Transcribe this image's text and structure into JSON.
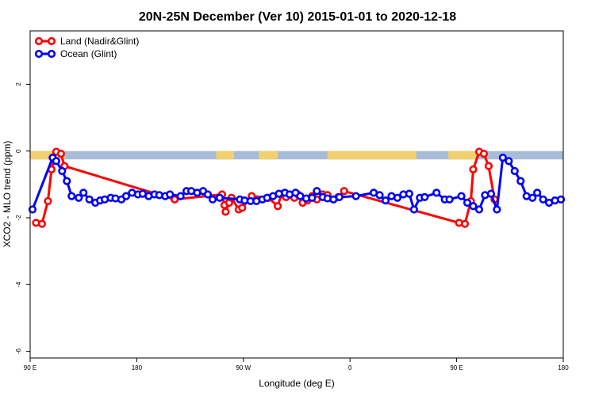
{
  "chart_data": {
    "type": "line",
    "title": "20N-25N December (Ver 10)   2015-01-01 to 2020-12-18",
    "xlabel": "Longitude (deg E)",
    "ylabel": "XCO2 - MLO trend (ppm)",
    "xlim": [
      90,
      540
    ],
    "ylim": [
      -6.2,
      3.6
    ],
    "x_ticks": [
      {
        "value": 90,
        "label": "90 E"
      },
      {
        "value": 180,
        "label": "180"
      },
      {
        "value": 270,
        "label": "90 W"
      },
      {
        "value": 360,
        "label": "0"
      },
      {
        "value": 450,
        "label": "90 E"
      },
      {
        "value": 540,
        "label": "180"
      }
    ],
    "y_ticks": [
      {
        "value": 2,
        "label": "2"
      },
      {
        "value": 0,
        "label": "0"
      },
      {
        "value": -2,
        "label": "-2"
      },
      {
        "value": -4,
        "label": "-4"
      },
      {
        "value": -6,
        "label": "-6"
      }
    ],
    "band": {
      "y_from": 0,
      "y_to": -0.25,
      "ocean_color": "#a8bcd8",
      "land_color": "#f2d070",
      "land_ranges": [
        [
          90,
          119
        ],
        [
          247,
          262
        ],
        [
          283,
          299
        ],
        [
          341,
          416
        ],
        [
          443,
          468
        ]
      ]
    },
    "legend": {
      "position": "top-left"
    },
    "series": [
      {
        "name": "Land (Nadir&Glint)",
        "color": "#ff0000",
        "x": [
          95,
          100,
          105,
          108,
          112,
          116,
          119,
          212,
          252,
          254,
          255,
          258,
          260,
          266,
          269,
          277,
          291,
          299,
          302,
          306,
          313,
          316,
          320,
          324,
          328,
          332,
          337,
          341,
          346,
          350,
          355,
          452,
          457,
          462,
          464,
          469,
          473,
          477,
          482
        ],
        "y": [
          -2.15,
          -2.18,
          -1.5,
          -0.55,
          -0.02,
          -0.08,
          -0.45,
          -1.45,
          -1.3,
          -1.62,
          -1.82,
          -1.55,
          -1.4,
          -1.75,
          -1.7,
          -1.35,
          -1.4,
          -1.65,
          -1.3,
          -1.38,
          -1.4,
          -1.3,
          -1.55,
          -1.48,
          -1.35,
          -1.45,
          -1.3,
          -1.32,
          -1.45,
          -1.38,
          -1.2,
          -2.15,
          -2.18,
          -1.5,
          -0.55,
          -0.02,
          -0.08,
          -0.45,
          -1.45
        ]
      },
      {
        "name": "Ocean (Glint)",
        "color": "#0000ff",
        "x": [
          92,
          109,
          112,
          117,
          121,
          125,
          131,
          135,
          140,
          145,
          149,
          153,
          158,
          162,
          167,
          171,
          176,
          181,
          185,
          190,
          195,
          199,
          204,
          208,
          217,
          222,
          226,
          231,
          236,
          240,
          244,
          250,
          267,
          271,
          276,
          281,
          286,
          290,
          295,
          300,
          305,
          309,
          314,
          318,
          323,
          328,
          332,
          337,
          341,
          346,
          351,
          365,
          380,
          385,
          390,
          395,
          400,
          405,
          410,
          414,
          419,
          423,
          433,
          440,
          444,
          454,
          459,
          464,
          469,
          474,
          479,
          484,
          489,
          494,
          499,
          504,
          509,
          514,
          518,
          523,
          528,
          533,
          538
        ],
        "y": [
          -1.75,
          -0.2,
          -0.3,
          -0.6,
          -0.9,
          -1.35,
          -1.4,
          -1.25,
          -1.45,
          -1.55,
          -1.48,
          -1.45,
          -1.4,
          -1.42,
          -1.45,
          -1.35,
          -1.25,
          -1.3,
          -1.28,
          -1.35,
          -1.3,
          -1.32,
          -1.35,
          -1.3,
          -1.35,
          -1.2,
          -1.2,
          -1.25,
          -1.2,
          -1.3,
          -1.45,
          -1.4,
          -1.45,
          -1.48,
          -1.5,
          -1.5,
          -1.45,
          -1.4,
          -1.35,
          -1.28,
          -1.25,
          -1.3,
          -1.25,
          -1.35,
          -1.42,
          -1.4,
          -1.2,
          -1.38,
          -1.42,
          -1.45,
          -1.38,
          -1.35,
          -1.25,
          -1.32,
          -1.48,
          -1.35,
          -1.4,
          -1.3,
          -1.28,
          -1.75,
          -1.4,
          -1.38,
          -1.25,
          -1.45,
          -1.45,
          -1.35,
          -1.55,
          -1.65,
          -1.75,
          -1.32,
          -1.28,
          -1.75,
          -0.2,
          -0.3,
          -0.6,
          -0.9,
          -1.35,
          -1.4,
          -1.25,
          -1.45,
          -1.55,
          -1.48,
          -1.45
        ]
      }
    ]
  }
}
